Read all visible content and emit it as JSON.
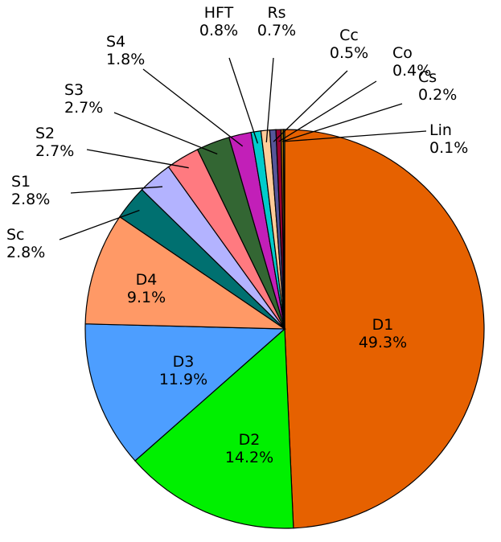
{
  "chart_data": {
    "type": "pie",
    "title": "",
    "start": "12 o'clock",
    "direction": "clockwise",
    "slices": [
      {
        "label": "D1",
        "value": 49.3,
        "display": "49.3%",
        "color": "#E66100"
      },
      {
        "label": "D2",
        "value": 14.2,
        "display": "14.2%",
        "color": "#00F000"
      },
      {
        "label": "D3",
        "value": 11.9,
        "display": "11.9%",
        "color": "#4D9EFF"
      },
      {
        "label": "D4",
        "value": 9.1,
        "display": "9.1%",
        "color": "#FF9966"
      },
      {
        "label": "Sc",
        "value": 2.8,
        "display": "2.8%",
        "color": "#007070"
      },
      {
        "label": "S1",
        "value": 2.8,
        "display": "2.8%",
        "color": "#B3B3FF"
      },
      {
        "label": "S2",
        "value": 2.7,
        "display": "2.7%",
        "color": "#FF7A80"
      },
      {
        "label": "S3",
        "value": 2.7,
        "display": "2.7%",
        "color": "#336633"
      },
      {
        "label": "S4",
        "value": 1.8,
        "display": "1.8%",
        "color": "#C21FB8"
      },
      {
        "label": "HFT",
        "value": 0.8,
        "display": "0.8%",
        "color": "#00CCCC"
      },
      {
        "label": "Rs",
        "value": 0.7,
        "display": "0.7%",
        "color": "#FFCC99"
      },
      {
        "label": "Cc",
        "value": 0.5,
        "display": "0.5%",
        "color": "#555599"
      },
      {
        "label": "Co",
        "value": 0.4,
        "display": "0.4%",
        "color": "#990033"
      },
      {
        "label": "Cs",
        "value": 0.2,
        "display": "0.2%",
        "color": "#996600"
      },
      {
        "label": "Lin",
        "value": 0.1,
        "display": "0.1%",
        "color": "#66CC66"
      }
    ]
  }
}
